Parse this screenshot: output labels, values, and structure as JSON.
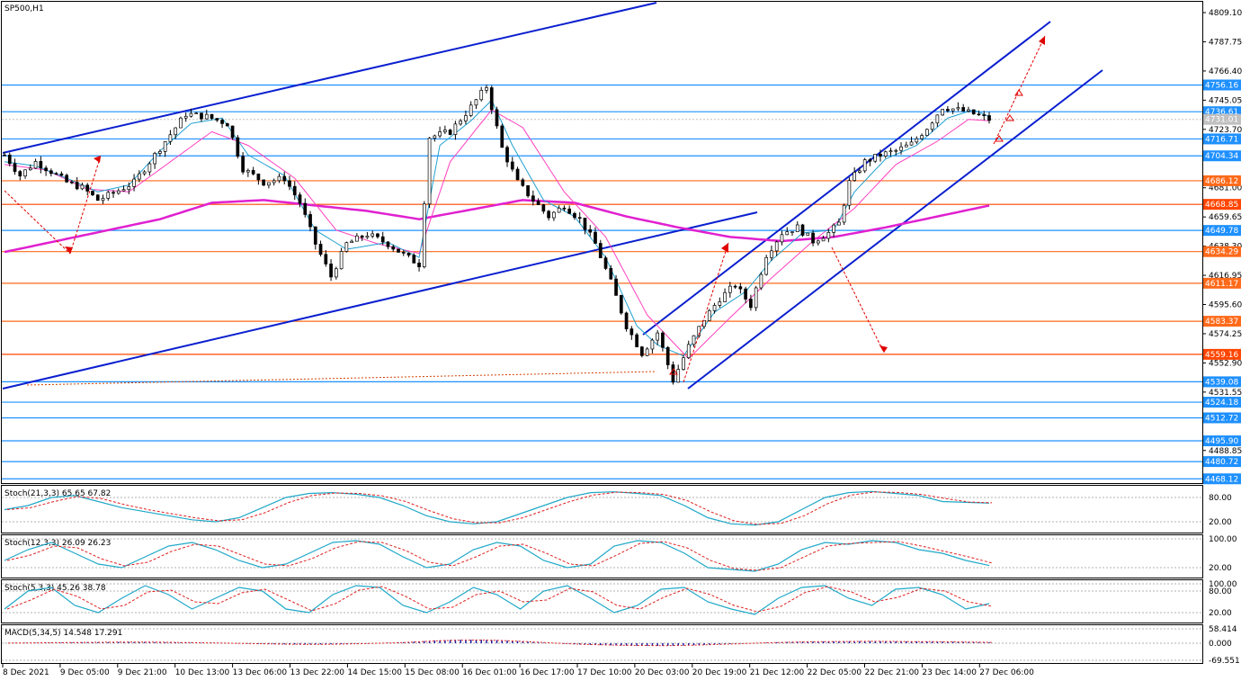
{
  "chart_data": {
    "type": "candlestick",
    "symbol_label": "SP500,H1",
    "price_axis": {
      "range": [
        4465,
        4817
      ],
      "ticks": [
        "4809.10",
        "4787.75",
        "4766.40",
        "4745.05",
        "4723.70",
        "4681.00",
        "4659.65",
        "4638.30",
        "4616.95",
        "4595.60",
        "4574.25",
        "4552.90",
        "4531.55",
        "4488.85"
      ]
    },
    "levels": [
      {
        "label": "4756.16",
        "value": 4756.16,
        "color": "#1e90ff"
      },
      {
        "label": "4736.61",
        "value": 4736.61,
        "color": "#1e90ff"
      },
      {
        "label": "4716.71",
        "value": 4716.71,
        "color": "#1e90ff"
      },
      {
        "label": "4704.34",
        "value": 4704.34,
        "color": "#1e90ff"
      },
      {
        "label": "4686.12",
        "value": 4686.12,
        "color": "#ff6a1a"
      },
      {
        "label": "4668.85",
        "value": 4668.85,
        "color": "#ff4500"
      },
      {
        "label": "4649.78",
        "value": 4649.78,
        "color": "#1e90ff"
      },
      {
        "label": "4634.29",
        "value": 4634.29,
        "color": "#ff6a1a"
      },
      {
        "label": "4611.17",
        "value": 4611.17,
        "color": "#ff6a1a"
      },
      {
        "label": "4583.37",
        "value": 4583.37,
        "color": "#ff6a1a"
      },
      {
        "label": "4559.16",
        "value": 4559.16,
        "color": "#ff4500"
      },
      {
        "label": "4539.08",
        "value": 4539.08,
        "color": "#1e90ff"
      },
      {
        "label": "4524.18",
        "value": 4524.18,
        "color": "#1e90ff"
      },
      {
        "label": "4512.72",
        "value": 4512.72,
        "color": "#1e90ff"
      },
      {
        "label": "4495.90",
        "value": 4495.9,
        "color": "#1e90ff"
      },
      {
        "label": "4480.72",
        "value": 4480.72,
        "color": "#1e90ff"
      },
      {
        "label": "4468.12",
        "value": 4468.12,
        "color": "#1e90ff"
      }
    ],
    "current_price": {
      "label": "4731.01",
      "value": 4731.01
    },
    "time_axis": [
      "8 Dec 2021",
      "9 Dec 05:00",
      "9 Dec 21:00",
      "10 Dec 13:00",
      "13 Dec 06:00",
      "13 Dec 22:00",
      "14 Dec 15:00",
      "15 Dec 08:00",
      "16 Dec 01:00",
      "16 Dec 17:00",
      "17 Dec 10:00",
      "20 Dec 03:00",
      "20 Dec 19:00",
      "21 Dec 12:00",
      "22 Dec 05:00",
      "22 Dec 21:00",
      "23 Dec 14:00",
      "27 Dec 06:00"
    ],
    "price_path": [
      [
        0,
        4705
      ],
      [
        3,
        4690
      ],
      [
        6,
        4700
      ],
      [
        9,
        4693
      ],
      [
        12,
        4685
      ],
      [
        15,
        4681
      ],
      [
        18,
        4672
      ],
      [
        21,
        4677
      ],
      [
        25,
        4685
      ],
      [
        28,
        4700
      ],
      [
        31,
        4715
      ],
      [
        35,
        4735
      ],
      [
        39,
        4733
      ],
      [
        43,
        4728
      ],
      [
        46,
        4695
      ],
      [
        50,
        4685
      ],
      [
        54,
        4688
      ],
      [
        57,
        4670
      ],
      [
        60,
        4640
      ],
      [
        63,
        4616
      ],
      [
        66,
        4640
      ],
      [
        70,
        4647
      ],
      [
        74,
        4640
      ],
      [
        77,
        4632
      ],
      [
        80,
        4625
      ],
      [
        82,
        4718
      ],
      [
        86,
        4722
      ],
      [
        90,
        4740
      ],
      [
        93,
        4755
      ],
      [
        96,
        4710
      ],
      [
        99,
        4685
      ],
      [
        102,
        4672
      ],
      [
        105,
        4660
      ],
      [
        108,
        4668
      ],
      [
        111,
        4658
      ],
      [
        114,
        4640
      ],
      [
        117,
        4612
      ],
      [
        120,
        4580
      ],
      [
        123,
        4560
      ],
      [
        126,
        4575
      ],
      [
        129,
        4540
      ],
      [
        132,
        4565
      ],
      [
        135,
        4585
      ],
      [
        138,
        4600
      ],
      [
        141,
        4610
      ],
      [
        144,
        4595
      ],
      [
        147,
        4632
      ],
      [
        150,
        4648
      ],
      [
        153,
        4652
      ],
      [
        156,
        4642
      ],
      [
        159,
        4648
      ],
      [
        161,
        4655
      ],
      [
        163,
        4685
      ],
      [
        166,
        4700
      ],
      [
        169,
        4705
      ],
      [
        172,
        4708
      ],
      [
        175,
        4713
      ],
      [
        178,
        4725
      ],
      [
        181,
        4740
      ],
      [
        184,
        4738
      ],
      [
        187,
        4735
      ],
      [
        190,
        4731
      ]
    ],
    "fast_ma": [
      [
        0,
        4700
      ],
      [
        6,
        4697
      ],
      [
        12,
        4688
      ],
      [
        18,
        4678
      ],
      [
        24,
        4683
      ],
      [
        30,
        4708
      ],
      [
        36,
        4728
      ],
      [
        42,
        4732
      ],
      [
        47,
        4705
      ],
      [
        54,
        4690
      ],
      [
        60,
        4650
      ],
      [
        66,
        4636
      ],
      [
        74,
        4641
      ],
      [
        80,
        4630
      ],
      [
        84,
        4712
      ],
      [
        90,
        4730
      ],
      [
        94,
        4745
      ],
      [
        98,
        4712
      ],
      [
        104,
        4672
      ],
      [
        110,
        4660
      ],
      [
        116,
        4630
      ],
      [
        122,
        4580
      ],
      [
        126,
        4566
      ],
      [
        131,
        4558
      ],
      [
        137,
        4590
      ],
      [
        143,
        4605
      ],
      [
        148,
        4628
      ],
      [
        154,
        4648
      ],
      [
        160,
        4650
      ],
      [
        164,
        4678
      ],
      [
        170,
        4702
      ],
      [
        176,
        4712
      ],
      [
        182,
        4732
      ],
      [
        187,
        4738
      ],
      [
        190,
        4733
      ]
    ],
    "slow_ma": [
      [
        0,
        4698
      ],
      [
        8,
        4694
      ],
      [
        16,
        4680
      ],
      [
        24,
        4678
      ],
      [
        32,
        4700
      ],
      [
        40,
        4722
      ],
      [
        47,
        4712
      ],
      [
        56,
        4688
      ],
      [
        64,
        4650
      ],
      [
        72,
        4640
      ],
      [
        80,
        4633
      ],
      [
        86,
        4700
      ],
      [
        94,
        4738
      ],
      [
        100,
        4725
      ],
      [
        108,
        4678
      ],
      [
        116,
        4645
      ],
      [
        124,
        4588
      ],
      [
        132,
        4556
      ],
      [
        140,
        4586
      ],
      [
        148,
        4615
      ],
      [
        156,
        4642
      ],
      [
        164,
        4666
      ],
      [
        172,
        4698
      ],
      [
        180,
        4715
      ],
      [
        186,
        4731
      ],
      [
        190,
        4730
      ]
    ],
    "long_ma": [
      [
        0,
        4634
      ],
      [
        10,
        4642
      ],
      [
        20,
        4650
      ],
      [
        30,
        4658
      ],
      [
        40,
        4670
      ],
      [
        50,
        4672
      ],
      [
        60,
        4668
      ],
      [
        70,
        4664
      ],
      [
        80,
        4658
      ],
      [
        90,
        4665
      ],
      [
        100,
        4672
      ],
      [
        110,
        4670
      ],
      [
        120,
        4660
      ],
      [
        130,
        4652
      ],
      [
        140,
        4645
      ],
      [
        150,
        4642
      ],
      [
        160,
        4645
      ],
      [
        170,
        4652
      ],
      [
        180,
        4660
      ],
      [
        190,
        4668
      ]
    ],
    "indicators": [
      {
        "label": "Stoch(21,3,3) 65.65 67.82",
        "levels": [
          "80.00",
          "20.00"
        ],
        "k": [
          50,
          60,
          80,
          85,
          70,
          55,
          45,
          35,
          25,
          20,
          30,
          55,
          80,
          90,
          92,
          88,
          80,
          60,
          35,
          20,
          15,
          20,
          40,
          60,
          80,
          92,
          94,
          90,
          85,
          60,
          30,
          15,
          12,
          20,
          50,
          80,
          92,
          95,
          90,
          85,
          70,
          68,
          66
        ]
      },
      {
        "label": "Stoch(12,3,3) 26.09 26.23",
        "levels": [
          "100.00",
          "20.00"
        ],
        "k": [
          40,
          70,
          90,
          60,
          30,
          20,
          50,
          80,
          90,
          70,
          40,
          20,
          30,
          60,
          90,
          95,
          85,
          50,
          20,
          30,
          70,
          90,
          80,
          40,
          20,
          30,
          80,
          95,
          90,
          60,
          20,
          15,
          10,
          30,
          70,
          90,
          85,
          95,
          90,
          70,
          60,
          40,
          26
        ]
      },
      {
        "label": "Stoch(5,3,3) 45.26 38.78",
        "levels": [
          "100.00",
          "80.00",
          "20.00"
        ],
        "k": [
          30,
          80,
          90,
          40,
          20,
          60,
          95,
          70,
          30,
          60,
          90,
          80,
          30,
          20,
          70,
          95,
          90,
          40,
          20,
          50,
          90,
          70,
          30,
          80,
          95,
          60,
          20,
          40,
          85,
          90,
          50,
          30,
          15,
          60,
          90,
          95,
          60,
          40,
          85,
          90,
          70,
          30,
          45
        ]
      },
      {
        "label": "MACD(5,34,5) 14.548 17.291",
        "levels": [
          "58.414",
          "0.000",
          "-69.551"
        ],
        "hist": [
          2,
          5,
          8,
          12,
          15,
          18,
          22,
          20,
          15,
          10,
          5,
          -2,
          -8,
          -15,
          -20,
          -22,
          -18,
          -10,
          -2,
          8,
          25,
          45,
          55,
          58,
          50,
          35,
          15,
          -5,
          -20,
          -30,
          -38,
          -42,
          -45,
          -40,
          -30,
          -18,
          -5,
          8,
          18,
          25,
          30,
          32,
          35,
          33,
          30,
          28,
          25,
          20,
          15
        ]
      }
    ]
  }
}
